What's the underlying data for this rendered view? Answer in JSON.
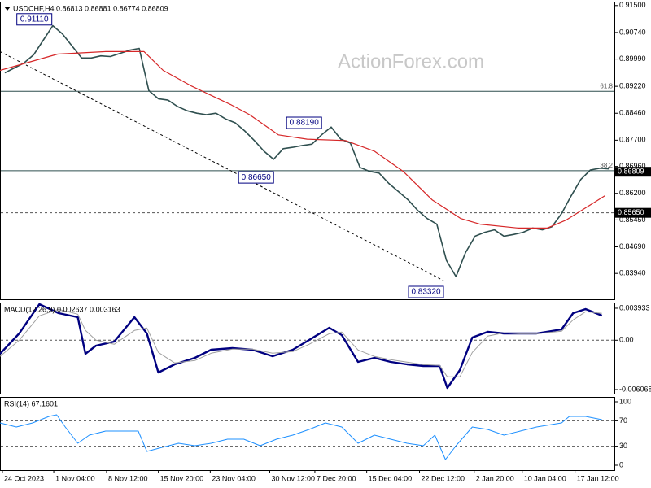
{
  "chart_data": [
    {
      "type": "line",
      "title": "USDCHF,H4  0.86813 0.86881 0.86774 0.86809",
      "watermark": "ActionForex.com",
      "xlim": [
        0,
        64
      ],
      "ylim": [
        0.8321,
        0.9161
      ],
      "yticks": [
        {
          "value": 0.915,
          "label": "0.91500"
        },
        {
          "value": 0.9074,
          "label": "0.90740"
        },
        {
          "value": 0.8999,
          "label": "0.89990"
        },
        {
          "value": 0.8922,
          "label": "0.89220"
        },
        {
          "value": 0.8846,
          "label": "0.88460"
        },
        {
          "value": 0.877,
          "label": "0.87700"
        },
        {
          "value": 0.8696,
          "label": "0.86960"
        },
        {
          "value": 0.862,
          "label": "0.86200"
        },
        {
          "value": 0.8545,
          "label": "0.85450"
        },
        {
          "value": 0.8469,
          "label": "0.84690"
        },
        {
          "value": 0.8394,
          "label": "0.83940"
        }
      ],
      "series": [
        {
          "name": "USDCHF",
          "color": "#2f4f4f",
          "width": 1.6,
          "values": [
            0.896,
            0.8974,
            0.8988,
            0.9011,
            0.9052,
            0.9093,
            0.907,
            0.9036,
            0.9002,
            0.9002,
            0.9008,
            0.9006,
            0.9015,
            0.9024,
            0.9029,
            0.891,
            0.8887,
            0.8883,
            0.8865,
            0.8853,
            0.8846,
            0.8842,
            0.8846,
            0.883,
            0.8819,
            0.8796,
            0.8769,
            0.8739,
            0.8716,
            0.8746,
            0.875,
            0.8755,
            0.8759,
            0.8785,
            0.8807,
            0.8773,
            0.8762,
            0.8693,
            0.8682,
            0.8677,
            0.8648,
            0.8625,
            0.8602,
            0.8572,
            0.8549,
            0.8533,
            0.8431,
            0.8385,
            0.8453,
            0.8499,
            0.851,
            0.8517,
            0.8499,
            0.8504,
            0.851,
            0.8522,
            0.8517,
            0.8526,
            0.8563,
            0.8613,
            0.8659,
            0.8686,
            0.8691,
            0.8689
          ]
        },
        {
          "name": "MA",
          "color": "#d62728",
          "width": 1.2,
          "x": [
            0,
            3,
            6,
            11,
            15,
            17,
            20,
            24,
            26,
            29,
            32,
            36,
            39,
            42,
            45,
            48,
            50,
            54,
            57,
            59,
            63
          ],
          "values": [
            0.8967,
            0.899,
            0.9013,
            0.902,
            0.902,
            0.8967,
            0.8922,
            0.8871,
            0.8842,
            0.8785,
            0.8773,
            0.8769,
            0.8739,
            0.8682,
            0.8602,
            0.8549,
            0.8533,
            0.8522,
            0.8522,
            0.8545,
            0.8613
          ]
        }
      ],
      "levels": [
        {
          "value": 0.8908,
          "label": "61.8",
          "style": "solid",
          "label_position": "inside"
        },
        {
          "value": 0.8684,
          "label": "38.2",
          "style": "solid",
          "label_position": "inside"
        },
        {
          "value": 0.8565,
          "label": "0.85650",
          "style": "dashed",
          "label_position": "axis"
        },
        {
          "value": 0.86809,
          "label": "0.86809",
          "style": "none",
          "label_position": "axis"
        }
      ],
      "annotations": [
        {
          "label": "0.91110",
          "value": 0.9111,
          "x": 5.4
        },
        {
          "label": "0.88190",
          "value": 0.8819,
          "x": 33.5
        },
        {
          "label": "0.86650",
          "value": 0.8665,
          "x": 28.5
        },
        {
          "label": "0.83320",
          "value": 0.8332,
          "x": 46.2
        }
      ],
      "trendline": {
        "x": [
          0,
          46.2
        ],
        "values": [
          0.902,
          0.8374
        ]
      }
    },
    {
      "type": "line",
      "title": "MACD(12,26,9) 0.002637 0.003163",
      "xlim": [
        0,
        64
      ],
      "ylim": [
        -0.00657,
        0.00463
      ],
      "yticks": [
        {
          "value": 0.003933,
          "label": "0.003933"
        },
        {
          "value": 0,
          "label": "0.00"
        },
        {
          "value": -0.006068,
          "label": "-0.006068"
        }
      ],
      "levels": [
        {
          "value": 0,
          "style": "dashed"
        }
      ],
      "series": [
        {
          "name": "MACD",
          "color": "#000080",
          "width": 2.4,
          "x": [
            0,
            2.0,
            4.1,
            6.1,
            8.1,
            8.9,
            10.0,
            11.9,
            14.0,
            15.3,
            16.5,
            18.2,
            20.3,
            22.0,
            24.2,
            26.3,
            28.4,
            30.5,
            32.2,
            34.3,
            35.6,
            37.3,
            39.0,
            40.7,
            42.4,
            44.1,
            45.8,
            46.6,
            47.9,
            49.2,
            50.8,
            52.5,
            54.2,
            55.9,
            58.5,
            59.7,
            61.0,
            62.7
          ],
          "values": [
            -0.00167,
            0.00083,
            0.00443,
            0.00333,
            0.00283,
            -0.00167,
            -0.00067,
            -0.00017,
            0.00283,
            0.00083,
            -0.00397,
            -0.00297,
            -0.00217,
            -0.00117,
            -0.00097,
            -0.00117,
            -0.00197,
            -0.00117,
            3e-05,
            0.00153,
            0.00063,
            -0.00267,
            -0.00217,
            -0.00267,
            -0.00297,
            -0.00317,
            -0.00317,
            -0.00587,
            -0.00367,
            0.00033,
            0.00103,
            0.00083,
            0.00083,
            0.00083,
            0.00133,
            0.00333,
            0.00383,
            0.00303
          ]
        },
        {
          "name": "Signal",
          "color": "#a0a0a0",
          "width": 1,
          "x": [
            0,
            2.0,
            4.1,
            6.1,
            8.1,
            8.9,
            10.0,
            11.9,
            14.0,
            15.3,
            16.5,
            18.2,
            20.3,
            22.0,
            24.2,
            26.3,
            28.4,
            30.5,
            32.2,
            34.3,
            35.6,
            37.3,
            39.0,
            40.7,
            42.4,
            44.1,
            45.8,
            46.6,
            47.9,
            49.2,
            50.8,
            52.5,
            54.2,
            55.9,
            58.5,
            59.7,
            61.0,
            62.7
          ],
          "values": [
            -0.002,
            0.0,
            0.003,
            0.0038,
            0.0032,
            0.0012,
            0.0,
            -0.0005,
            0.0012,
            0.0015,
            -0.0015,
            -0.0028,
            -0.0025,
            -0.0016,
            -0.0011,
            -0.0011,
            -0.0016,
            -0.0014,
            -0.0005,
            0.0008,
            0.001,
            -0.0012,
            -0.002,
            -0.0024,
            -0.0027,
            -0.003,
            -0.0031,
            -0.0045,
            -0.0045,
            -0.0015,
            0.0005,
            0.0009,
            0.0008,
            0.0008,
            0.0011,
            0.0025,
            0.0035,
            0.0033
          ]
        }
      ]
    },
    {
      "type": "line",
      "title": "RSI(14) 67.1601",
      "xlim": [
        0,
        64
      ],
      "ylim": [
        -7.7,
        107.7
      ],
      "yticks": [
        100,
        70,
        30,
        0
      ],
      "levels": [
        {
          "value": 70,
          "style": "dashed"
        },
        {
          "value": 30,
          "style": "dashed"
        }
      ],
      "xticks": [
        {
          "value": 0.25,
          "label": "24 Oct 2023"
        },
        {
          "value": 5.6,
          "label": "1 Nov 04:00"
        },
        {
          "value": 11.1,
          "label": "8 Nov 12:00"
        },
        {
          "value": 16.5,
          "label": "15 Nov 20:00"
        },
        {
          "value": 21.9,
          "label": "23 Nov 04:00"
        },
        {
          "value": 28.1,
          "label": "30 Nov 12:00"
        },
        {
          "value": 32.8,
          "label": "7 Dec 20:00"
        },
        {
          "value": 38.2,
          "label": "15 Dec 04:00"
        },
        {
          "value": 43.7,
          "label": "22 Dec 12:00"
        },
        {
          "value": 49.4,
          "label": "2 Jan 20:00"
        },
        {
          "value": 54.4,
          "label": "10 Jan 04:00"
        },
        {
          "value": 59.9,
          "label": "17 Jan 12:00"
        }
      ],
      "series": [
        {
          "name": "RSI",
          "color": "#1e90ff",
          "width": 1,
          "x": [
            0,
            1.7,
            3.4,
            5.1,
            5.9,
            6.8,
            8.1,
            9.3,
            11.0,
            12.7,
            14.4,
            15.3,
            16.9,
            18.6,
            20.3,
            22.0,
            23.7,
            25.4,
            27.1,
            28.8,
            30.5,
            32.2,
            33.9,
            35.6,
            37.3,
            39.0,
            40.7,
            42.4,
            44.1,
            45.3,
            46.4,
            47.5,
            49.2,
            50.8,
            52.5,
            54.2,
            55.9,
            58.5,
            59.3,
            61.0,
            62.7
          ],
          "values": [
            66.7,
            60.3,
            66.7,
            76.9,
            79.5,
            60.3,
            34.6,
            47.4,
            53.8,
            53.8,
            53.8,
            21.8,
            28.2,
            34.6,
            30.8,
            34.6,
            41.0,
            41.0,
            30.8,
            41.0,
            47.4,
            56.4,
            66.7,
            60.3,
            34.6,
            47.4,
            41.0,
            34.6,
            30.8,
            47.4,
            9.0,
            30.8,
            60.3,
            56.4,
            47.4,
            53.8,
            60.3,
            66.7,
            76.9,
            76.9,
            71.8
          ]
        }
      ]
    }
  ]
}
